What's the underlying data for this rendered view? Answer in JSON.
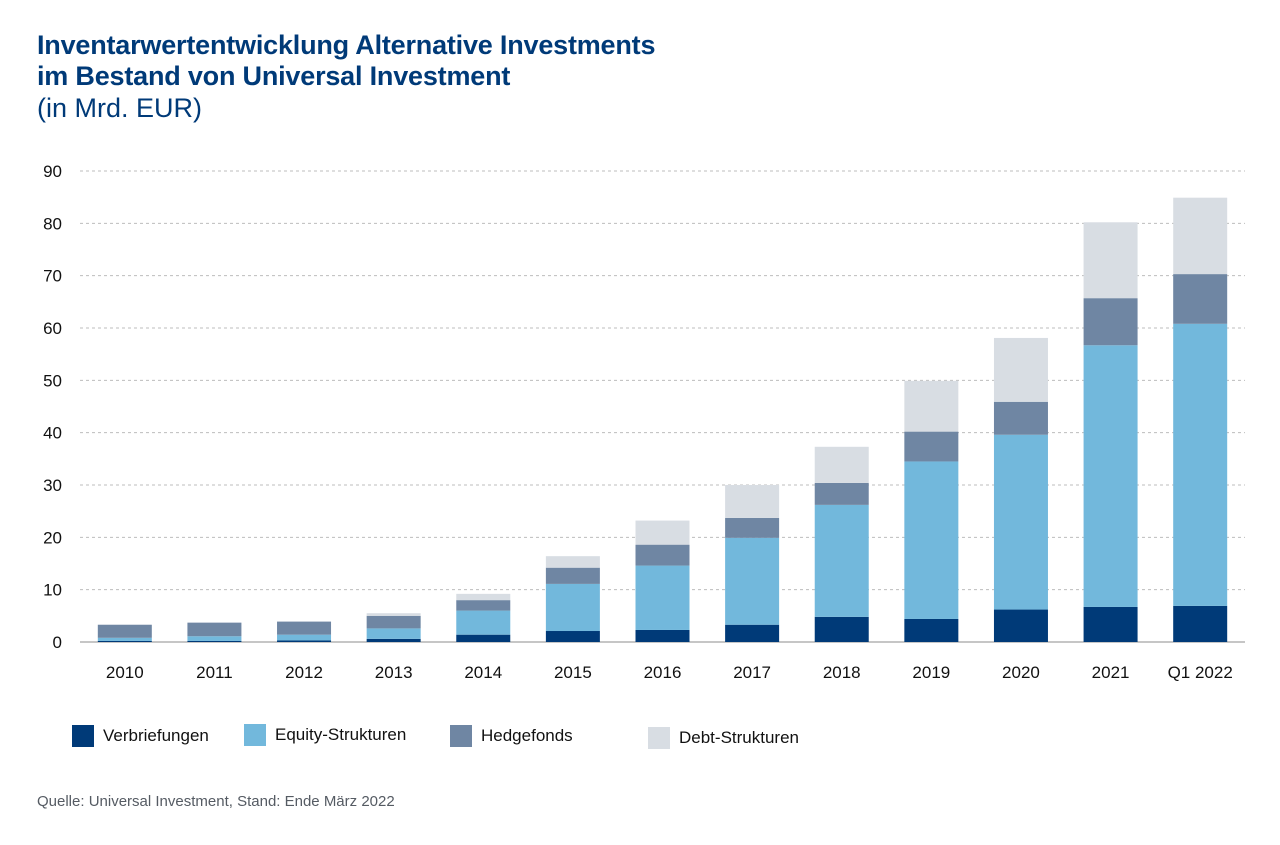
{
  "title_lines": [
    "Inventarwertentwicklung Alternative Investments",
    "im Bestand von Universal Investment"
  ],
  "subtitle": "(in Mrd. EUR)",
  "source": "Quelle: Universal Investment, Stand: Ende März 2022",
  "colors": {
    "title": "#003a78",
    "Verbriefungen": "#003a78",
    "Equity-Strukturen": "#72b8dc",
    "Hedgefonds": "#6f86a3",
    "Debt-Strukturen": "#d8dde3",
    "grid": "#bdbdbd",
    "axis": "#8c8c8c"
  },
  "chart_data": {
    "type": "bar",
    "stacked": true,
    "title": "Inventarwertentwicklung Alternative Investments im Bestand von Universal Investment",
    "subtitle": "(in Mrd. EUR)",
    "xlabel": "",
    "ylabel": "",
    "ylim": [
      0,
      90
    ],
    "yticks": [
      0,
      10,
      20,
      30,
      40,
      50,
      60,
      70,
      80,
      90
    ],
    "grid": true,
    "legend_position": "bottom-left",
    "categories": [
      "2010",
      "2011",
      "2012",
      "2013",
      "2014",
      "2015",
      "2016",
      "2017",
      "2018",
      "2019",
      "2020",
      "2021",
      "Q1 2022"
    ],
    "series": [
      {
        "name": "Verbriefungen",
        "values": [
          0.2,
          0.2,
          0.3,
          0.6,
          1.4,
          2.1,
          2.3,
          3.3,
          4.8,
          4.4,
          6.2,
          6.7,
          6.9
        ]
      },
      {
        "name": "Equity-Strukturen",
        "values": [
          0.6,
          0.9,
          1.1,
          2.0,
          4.6,
          9.0,
          12.3,
          16.6,
          21.4,
          30.1,
          33.4,
          50.0,
          53.9
        ]
      },
      {
        "name": "Hedgefonds",
        "values": [
          2.5,
          2.6,
          2.5,
          2.4,
          2.0,
          3.1,
          4.0,
          3.8,
          4.2,
          5.7,
          6.3,
          9.0,
          9.5
        ]
      },
      {
        "name": "Debt-Strukturen",
        "values": [
          0.0,
          0.0,
          0.0,
          0.5,
          1.2,
          2.2,
          4.6,
          6.3,
          6.9,
          9.7,
          12.2,
          14.5,
          14.6
        ]
      }
    ]
  }
}
